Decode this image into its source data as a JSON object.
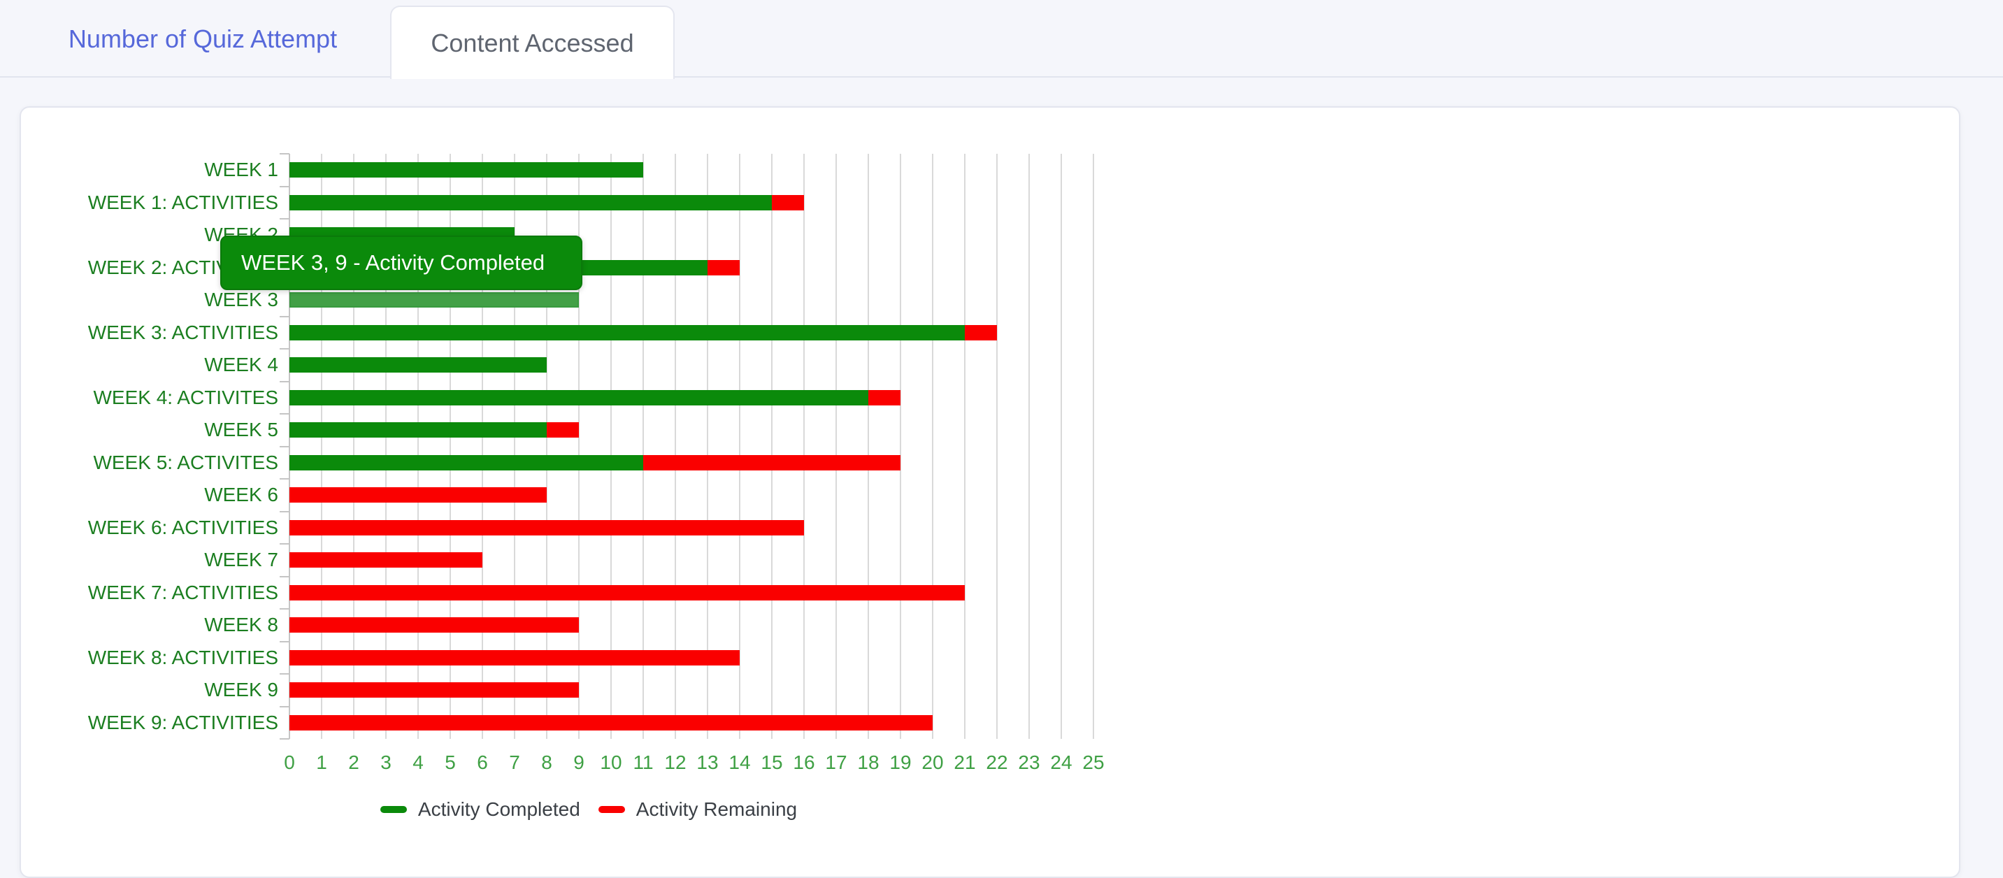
{
  "tabs": [
    {
      "label": "Number of Quiz Attempt",
      "active": false
    },
    {
      "label": "Content Accessed",
      "active": true
    }
  ],
  "tooltip": {
    "text": "WEEK 3, 9 - Activity Completed"
  },
  "chart_data": {
    "type": "bar",
    "orientation": "horizontal",
    "stacked": true,
    "grid": true,
    "legend_position": "bottom",
    "xlim": [
      0,
      25
    ],
    "x_ticks": [
      0,
      1,
      2,
      3,
      4,
      5,
      6,
      7,
      8,
      9,
      10,
      11,
      12,
      13,
      14,
      15,
      16,
      17,
      18,
      19,
      20,
      21,
      22,
      23,
      24,
      25
    ],
    "categories": [
      "WEEK 1",
      "WEEK 1: ACTIVITIES",
      "WEEK 2",
      "WEEK 2: ACTIVITIES",
      "WEEK 3",
      "WEEK 3: ACTIVITIES",
      "WEEK 4",
      "WEEK 4: ACTIVITES",
      "WEEK 5",
      "WEEK 5: ACTIVITES",
      "WEEK 6",
      "WEEK 6: ACTIVITIES",
      "WEEK 7",
      "WEEK 7: ACTIVITIES",
      "WEEK 8",
      "WEEK 8: ACTIVITIES",
      "WEEK 9",
      "WEEK 9: ACTIVITIES"
    ],
    "series": [
      {
        "name": "Activity Completed",
        "color": "#0b8a0b",
        "values": [
          11,
          15,
          7,
          13,
          9,
          21,
          8,
          18,
          8,
          11,
          0,
          0,
          0,
          0,
          0,
          0,
          0,
          0
        ]
      },
      {
        "name": "Activity Remaining",
        "color": "#fa0000",
        "values": [
          0,
          1,
          0,
          1,
          0,
          1,
          0,
          1,
          1,
          8,
          8,
          16,
          6,
          21,
          9,
          14,
          9,
          20
        ]
      }
    ],
    "highlighted_category": "WEEK 3",
    "highlight_color": "#42a046"
  },
  "colors": {
    "page_background": "#f5f6fb",
    "card_background": "#ffffff",
    "tab_inactive_text": "#5668da",
    "tab_active_text": "#5f6570",
    "category_label_green": "#1b7e20",
    "tick_label_green": "#3fa044",
    "legend_text": "#3a3f45",
    "gridline": "#d9d9d9",
    "tooltip_background": "#0b8a0b",
    "tooltip_text": "#ffffff"
  }
}
